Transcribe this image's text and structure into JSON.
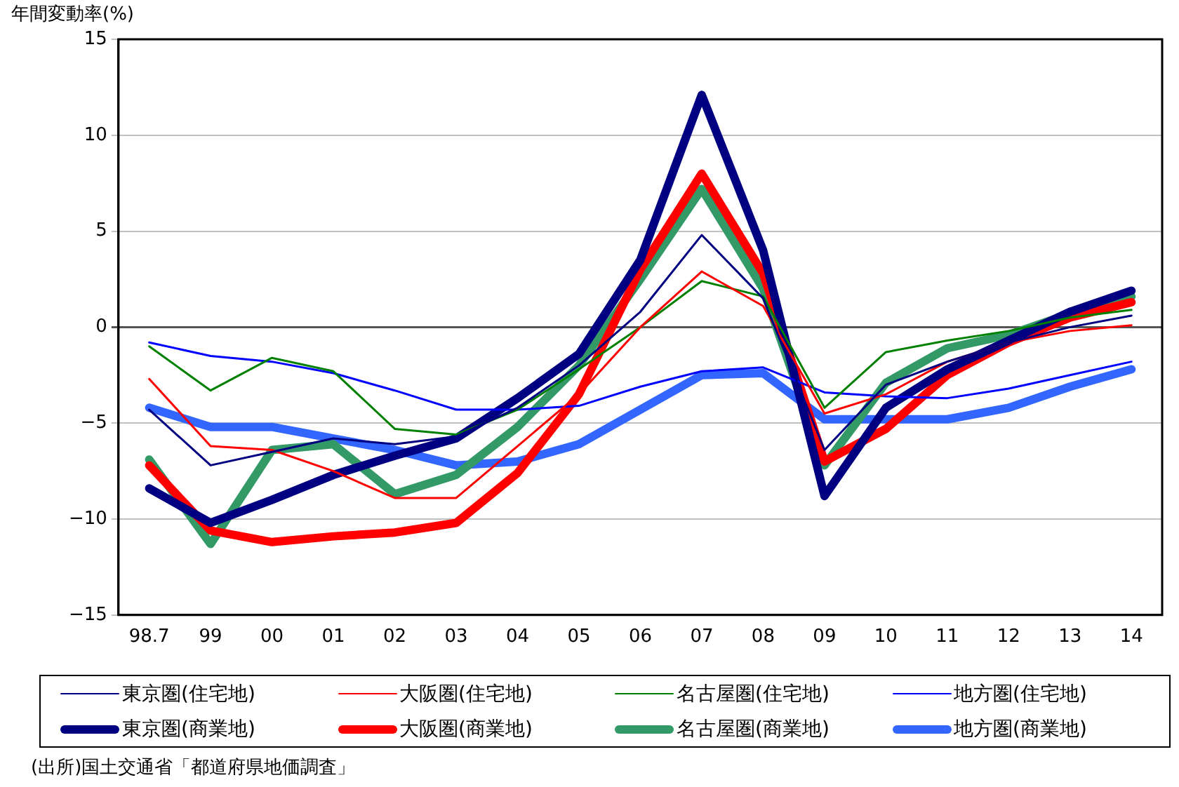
{
  "chart_data": {
    "type": "line",
    "ylabel": "年間変動率(%)",
    "categories": [
      "98.7",
      "99",
      "00",
      "01",
      "02",
      "03",
      "04",
      "05",
      "06",
      "07",
      "08",
      "09",
      "10",
      "11",
      "12",
      "13",
      "14"
    ],
    "series": [
      {
        "name": "東京圏(住宅地)",
        "color": "#000080",
        "values": [
          -4.3,
          -7.2,
          -6.5,
          -5.8,
          -6.1,
          -5.7,
          -4.2,
          -2.0,
          0.8,
          4.8,
          1.5,
          -6.4,
          -3.0,
          -1.8,
          -0.8,
          0.0,
          0.6
        ]
      },
      {
        "name": "大阪圏(住宅地)",
        "color": "#ff0000",
        "values": [
          -2.7,
          -6.2,
          -6.4,
          -7.5,
          -8.9,
          -8.9,
          -6.2,
          -3.5,
          0.0,
          2.9,
          1.1,
          -4.5,
          -3.5,
          -1.8,
          -0.8,
          -0.2,
          0.1
        ]
      },
      {
        "name": "名古屋圏(住宅地)",
        "color": "#008000",
        "values": [
          -1.0,
          -3.3,
          -1.6,
          -2.3,
          -5.3,
          -5.6,
          -4.3,
          -2.2,
          0.0,
          2.4,
          1.6,
          -4.2,
          -1.3,
          -0.7,
          -0.2,
          0.5,
          0.9
        ]
      },
      {
        "name": "地方圏(住宅地)",
        "color": "#0000ff",
        "values": [
          -0.8,
          -1.5,
          -1.8,
          -2.4,
          -3.3,
          -4.3,
          -4.3,
          -4.1,
          -3.1,
          -2.3,
          -2.1,
          -3.4,
          -3.6,
          -3.7,
          -3.2,
          -2.5,
          -1.8
        ]
      },
      {
        "name": "東京圏(商業地)",
        "color": "#000080",
        "values": [
          -8.4,
          -10.2,
          -9.0,
          -7.7,
          -6.7,
          -5.8,
          -3.7,
          -1.4,
          3.5,
          12.1,
          4.0,
          -8.8,
          -4.2,
          -2.2,
          -0.7,
          0.8,
          1.9
        ]
      },
      {
        "name": "大阪圏(商業地)",
        "color": "#ff0000",
        "values": [
          -7.2,
          -10.6,
          -11.2,
          -10.9,
          -10.7,
          -10.2,
          -7.6,
          -3.5,
          3.0,
          8.0,
          2.8,
          -7.0,
          -5.3,
          -2.5,
          -0.8,
          0.5,
          1.3
        ]
      },
      {
        "name": "名古屋圏(商業地)",
        "color": "#339966",
        "values": [
          -6.9,
          -11.3,
          -6.4,
          -6.1,
          -8.7,
          -7.7,
          -5.2,
          -2.0,
          2.5,
          7.2,
          2.0,
          -7.2,
          -2.9,
          -1.1,
          -0.4,
          0.7,
          1.6
        ]
      },
      {
        "name": "地方圏(商業地)",
        "color": "#3366ff",
        "values": [
          -4.2,
          -5.2,
          -5.2,
          -5.8,
          -6.4,
          -7.2,
          -7.0,
          -6.1,
          -4.3,
          -2.5,
          -2.4,
          -4.8,
          -4.8,
          -4.8,
          -4.2,
          -3.1,
          -2.2
        ]
      }
    ],
    "ylim": [
      -15,
      15
    ],
    "yticks": [
      -15,
      -10,
      -5,
      0,
      5,
      10,
      15
    ],
    "grid": "y",
    "legend": "bottom",
    "marker": "none",
    "line_style": "solid",
    "annotations": [
      "(出所)国土交通省「都道府県地価調査」"
    ]
  }
}
